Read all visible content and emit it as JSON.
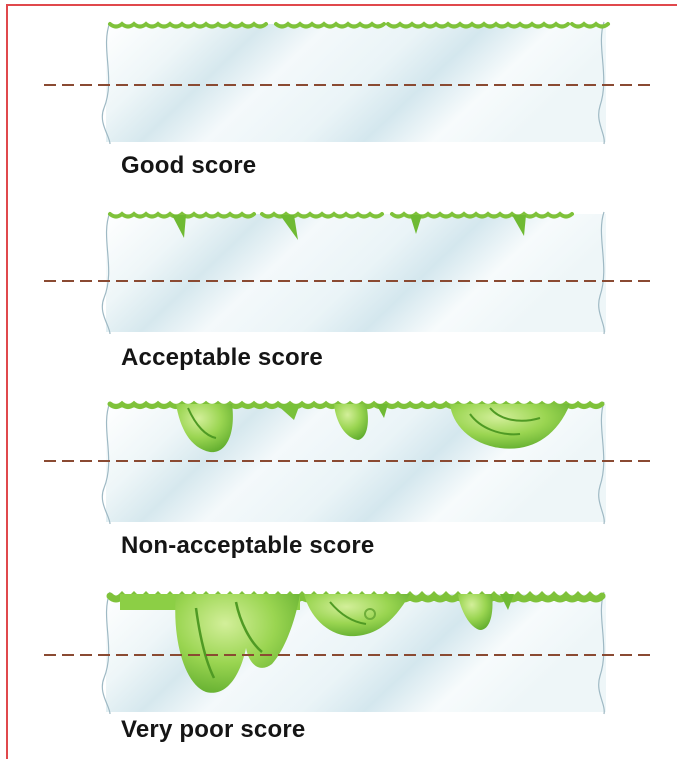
{
  "panels": [
    {
      "label": "Good score",
      "fouling": "none"
    },
    {
      "label": "Acceptable score",
      "fouling": "slight"
    },
    {
      "label": "Non-acceptable score",
      "fouling": "moderate"
    },
    {
      "label": "Very poor score",
      "fouling": "heavy"
    }
  ],
  "colors": {
    "frame": "#e0484c",
    "dashed_line": "#8a4a32",
    "growth_light": "#b7e27a",
    "growth_mid": "#8ccf45",
    "growth_dark": "#5aa82a",
    "panel_glass": "#e2f0f4",
    "label_text": "#151515"
  }
}
